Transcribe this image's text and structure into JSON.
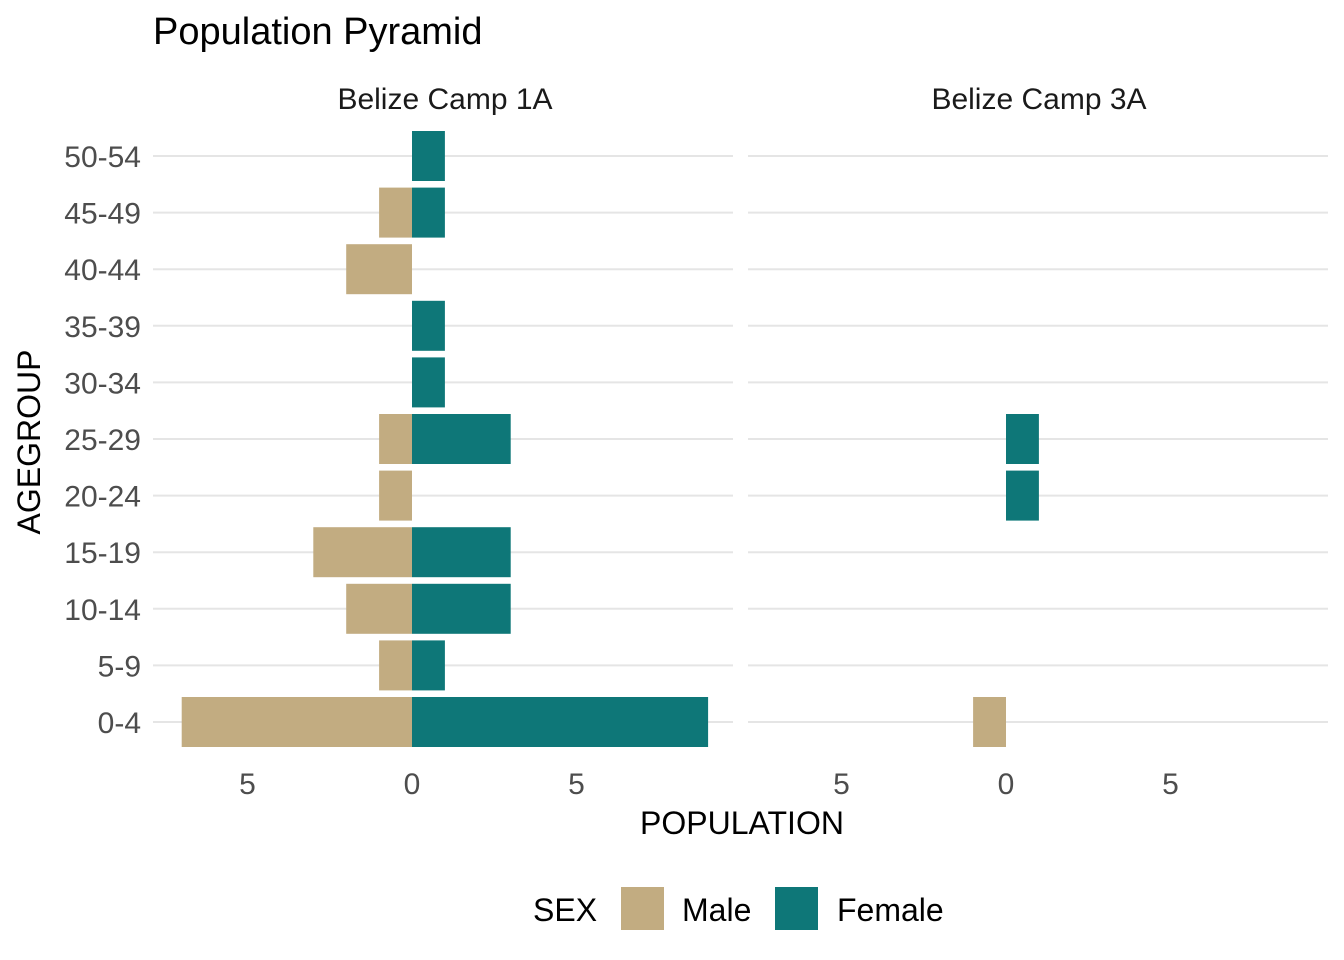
{
  "chart_data": {
    "type": "bar",
    "orientation": "horizontal",
    "title": "Population Pyramid",
    "xlabel": "POPULATION",
    "ylabel": "AGEGROUP",
    "categories": [
      "0-4",
      "5-9",
      "10-14",
      "15-19",
      "20-24",
      "25-29",
      "30-34",
      "35-39",
      "40-44",
      "45-49",
      "50-54"
    ],
    "xlim": [
      -7.5,
      9.5
    ],
    "x_ticks": [
      -5,
      0,
      5
    ],
    "x_tick_labels": [
      "5",
      "0",
      "5"
    ],
    "grid": "horizontal major gridlines",
    "legend": {
      "title": "SEX",
      "position": "bottom",
      "entries": [
        {
          "label": "Male",
          "color": "#C2AC81"
        },
        {
          "label": "Female",
          "color": "#0E7778"
        }
      ]
    },
    "panels": [
      {
        "name": "Belize Camp 1A",
        "series": [
          {
            "name": "Male",
            "values": [
              -7,
              -1,
              -2,
              -3,
              -1,
              -1,
              0,
              0,
              -2,
              -1,
              0
            ]
          },
          {
            "name": "Female",
            "values": [
              9,
              1,
              3,
              3,
              0,
              3,
              1,
              1,
              0,
              1,
              1
            ]
          }
        ]
      },
      {
        "name": "Belize Camp 3A",
        "series": [
          {
            "name": "Male",
            "values": [
              -1,
              0,
              0,
              0,
              0,
              0,
              0,
              0,
              0,
              0,
              0
            ]
          },
          {
            "name": "Female",
            "values": [
              0,
              0,
              0,
              0,
              1,
              1,
              0,
              0,
              0,
              0,
              0
            ]
          }
        ]
      }
    ]
  }
}
